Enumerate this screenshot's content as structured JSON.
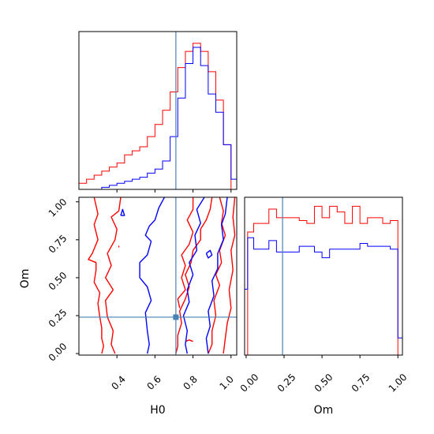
{
  "colors": {
    "series_a": "#ff0000",
    "series_b": "#0000ff",
    "truth": "#4682b4",
    "frame": "#000000"
  },
  "chart_data": {
    "type": "corner",
    "parameters": [
      "H0",
      "Om"
    ],
    "truth": {
      "H0": 0.71,
      "Om": 0.24
    },
    "axes": {
      "H0": {
        "xlabel": "H0",
        "range": [
          0.2,
          1.03
        ],
        "ticks": [
          0.4,
          0.6,
          0.8,
          1.0
        ],
        "tick_labels": [
          "0.4",
          "0.6",
          "0.8",
          "1.0"
        ]
      },
      "Om": {
        "xlabel": "Om",
        "ylabel": "Om",
        "range": [
          -0.01,
          1.03
        ],
        "ticks": [
          0.0,
          0.25,
          0.5,
          0.75,
          1.0
        ],
        "tick_labels": [
          "0.00",
          "0.25",
          "0.50",
          "0.75",
          "1.00"
        ]
      }
    },
    "hist_H0": {
      "bin_edges": [
        0.2,
        0.24,
        0.28,
        0.32,
        0.36,
        0.4,
        0.44,
        0.48,
        0.52,
        0.56,
        0.6,
        0.64,
        0.68,
        0.72,
        0.76,
        0.8,
        0.84,
        0.88,
        0.92,
        0.96,
        1.0,
        1.03
      ],
      "series": [
        {
          "color": "red",
          "values": [
            3,
            5,
            7,
            9,
            11,
            13,
            17,
            19,
            21,
            26,
            32,
            39,
            48,
            60,
            68,
            72,
            68,
            58,
            44,
            22,
            0
          ]
        },
        {
          "color": "blue",
          "values": [
            0,
            0,
            0,
            1,
            2,
            3,
            4,
            5,
            6,
            8,
            10,
            14,
            26,
            45,
            62,
            70,
            61,
            47,
            38,
            22,
            5
          ]
        }
      ]
    },
    "hist_Om": {
      "bin_edges": [
        -0.01,
        0.01,
        0.05,
        0.1,
        0.15,
        0.2,
        0.25,
        0.3,
        0.35,
        0.4,
        0.45,
        0.5,
        0.55,
        0.6,
        0.65,
        0.7,
        0.75,
        0.8,
        0.85,
        0.9,
        0.95,
        1.0,
        1.03
      ],
      "series": [
        {
          "color": "red",
          "values": [
            0,
            43,
            46,
            46,
            51,
            48,
            48,
            48,
            47,
            46,
            52,
            48,
            52,
            50,
            46,
            52,
            46,
            48,
            48,
            46,
            47,
            0
          ]
        },
        {
          "color": "blue",
          "values": [
            23,
            41,
            37,
            37,
            40,
            36,
            36,
            36,
            38,
            38,
            36,
            34,
            37,
            37,
            37,
            37,
            39,
            38,
            38,
            38,
            37,
            6
          ]
        }
      ]
    },
    "contours_H0_Om": [
      {
        "color": "red",
        "paths": [
          [
            [
              0.42,
              1.03
            ],
            [
              0.41,
              0.94
            ],
            [
              0.37,
              0.9
            ],
            [
              0.4,
              0.82
            ],
            [
              0.39,
              0.75
            ],
            [
              0.35,
              0.66
            ],
            [
              0.37,
              0.58
            ],
            [
              0.34,
              0.5
            ],
            [
              0.38,
              0.42
            ],
            [
              0.34,
              0.35
            ],
            [
              0.35,
              0.24
            ],
            [
              0.38,
              0.15
            ],
            [
              0.37,
              0.06
            ],
            [
              0.39,
              0.0
            ]
          ],
          [
            [
              0.28,
              1.03
            ],
            [
              0.3,
              0.92
            ],
            [
              0.28,
              0.85
            ],
            [
              0.3,
              0.75
            ],
            [
              0.27,
              0.66
            ],
            [
              0.25,
              0.62
            ],
            [
              0.29,
              0.6
            ],
            [
              0.29,
              0.55
            ],
            [
              0.28,
              0.47
            ],
            [
              0.31,
              0.4
            ],
            [
              0.3,
              0.33
            ],
            [
              0.31,
              0.24
            ],
            [
              0.32,
              0.17
            ],
            [
              0.32,
              0.1
            ],
            [
              0.33,
              0.05
            ],
            [
              0.32,
              0.0
            ]
          ],
          [
            [
              0.9,
              1.03
            ],
            [
              0.89,
              0.95
            ],
            [
              0.87,
              0.88
            ],
            [
              0.84,
              0.82
            ],
            [
              0.84,
              0.75
            ],
            [
              0.8,
              0.68
            ],
            [
              0.79,
              0.6
            ],
            [
              0.76,
              0.52
            ],
            [
              0.78,
              0.44
            ],
            [
              0.76,
              0.36
            ],
            [
              0.73,
              0.28
            ],
            [
              0.74,
              0.2
            ],
            [
              0.72,
              0.12
            ],
            [
              0.72,
              0.05
            ],
            [
              0.71,
              0.0
            ]
          ],
          [
            [
              0.8,
              1.03
            ],
            [
              0.8,
              0.95
            ],
            [
              0.77,
              0.88
            ],
            [
              0.8,
              0.8
            ],
            [
              0.78,
              0.72
            ],
            [
              0.74,
              0.65
            ],
            [
              0.76,
              0.58
            ],
            [
              0.74,
              0.5
            ],
            [
              0.76,
              0.42
            ],
            [
              0.72,
              0.36
            ],
            [
              0.73,
              0.3
            ]
          ],
          [
            [
              0.94,
              1.03
            ],
            [
              0.96,
              0.94
            ],
            [
              0.95,
              0.86
            ],
            [
              0.97,
              0.78
            ],
            [
              0.94,
              0.68
            ],
            [
              0.95,
              0.6
            ],
            [
              0.92,
              0.52
            ],
            [
              0.94,
              0.45
            ],
            [
              0.91,
              0.35
            ],
            [
              0.92,
              0.25
            ],
            [
              0.9,
              0.15
            ],
            [
              0.9,
              0.06
            ],
            [
              0.88,
              0.0
            ]
          ],
          [
            [
              1.02,
              1.03
            ],
            [
              1.01,
              0.9
            ],
            [
              1.02,
              0.78
            ],
            [
              1.0,
              0.68
            ],
            [
              1.01,
              0.55
            ],
            [
              0.99,
              0.42
            ],
            [
              1.0,
              0.3
            ],
            [
              0.98,
              0.2
            ],
            [
              0.97,
              0.1
            ],
            [
              0.96,
              0.0
            ]
          ],
          [
            [
              0.76,
              0.08
            ],
            [
              0.78,
              0.09
            ],
            [
              0.8,
              0.08
            ]
          ],
          [
            [
              0.41,
              0.7
            ],
            [
              0.41,
              0.71
            ]
          ]
        ]
      },
      {
        "color": "blue",
        "paths": [
          [
            [
              0.42,
              0.91
            ],
            [
              0.43,
              0.95
            ],
            [
              0.44,
              0.91
            ],
            [
              0.42,
              0.91
            ]
          ],
          [
            [
              0.65,
              1.03
            ],
            [
              0.62,
              0.96
            ],
            [
              0.6,
              0.88
            ],
            [
              0.57,
              0.84
            ],
            [
              0.55,
              0.78
            ],
            [
              0.58,
              0.74
            ],
            [
              0.56,
              0.65
            ],
            [
              0.52,
              0.6
            ],
            [
              0.52,
              0.5
            ],
            [
              0.56,
              0.44
            ],
            [
              0.58,
              0.35
            ],
            [
              0.55,
              0.27
            ],
            [
              0.56,
              0.15
            ],
            [
              0.57,
              0.06
            ],
            [
              0.56,
              0.0
            ]
          ],
          [
            [
              0.86,
              1.03
            ],
            [
              0.82,
              0.95
            ],
            [
              0.84,
              0.86
            ],
            [
              0.81,
              0.78
            ],
            [
              0.82,
              0.68
            ],
            [
              0.78,
              0.6
            ],
            [
              0.8,
              0.52
            ],
            [
              0.77,
              0.42
            ],
            [
              0.78,
              0.34
            ],
            [
              0.75,
              0.25
            ],
            [
              0.77,
              0.15
            ],
            [
              0.76,
              0.06
            ],
            [
              0.77,
              0.0
            ]
          ],
          [
            [
              0.98,
              1.03
            ],
            [
              0.97,
              0.92
            ],
            [
              0.95,
              0.85
            ],
            [
              0.96,
              0.75
            ],
            [
              0.93,
              0.66
            ],
            [
              0.93,
              0.56
            ],
            [
              0.9,
              0.48
            ],
            [
              0.91,
              0.38
            ],
            [
              0.88,
              0.28
            ],
            [
              0.89,
              0.18
            ],
            [
              0.87,
              0.1
            ],
            [
              0.88,
              0.0
            ]
          ],
          [
            [
              0.87,
              0.66
            ],
            [
              0.89,
              0.68
            ],
            [
              0.9,
              0.65
            ],
            [
              0.88,
              0.63
            ],
            [
              0.87,
              0.66
            ]
          ]
        ]
      }
    ]
  }
}
